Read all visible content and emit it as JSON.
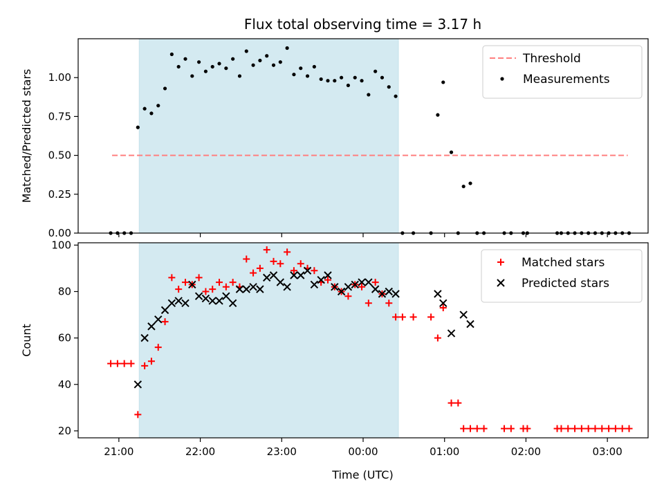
{
  "chart_data": {
    "title": "Flux total observing time = 3.17 h",
    "xlabel": "Time (UTC)",
    "xlim": [
      "2020-01-01T20:30",
      "2020-01-02T03:30"
    ],
    "x_tick_labels": [
      "21:00",
      "22:00",
      "23:00",
      "00:00",
      "01:00",
      "02:00",
      "03:00"
    ],
    "x_tick_times": [
      "2020-01-01T21:00",
      "2020-01-01T22:00",
      "2020-01-01T23:00",
      "2020-01-02T00:00",
      "2020-01-02T01:00",
      "2020-01-02T02:00",
      "2020-01-02T03:00"
    ],
    "highlight_span": {
      "start": "2020-01-01T21:15",
      "end": "2020-01-02T00:26",
      "color": "#d4eaf1"
    },
    "panels": [
      {
        "type": "scatter",
        "ylabel": "Matched/Predicted stars",
        "ylim": [
          0,
          1.25
        ],
        "yticks": [
          0.0,
          0.25,
          0.5,
          0.75,
          1.0
        ],
        "y_tick_labels": [
          "0.00",
          "0.25",
          "0.50",
          "0.75",
          "1.00"
        ],
        "legend": "top-right",
        "threshold": {
          "name": "Threshold",
          "value": 0.5,
          "x_start": "2020-01-01T20:55",
          "x_end": "2020-01-02T03:15",
          "color": "#ff7f7f"
        },
        "series": [
          {
            "name": "Measurements",
            "marker": "dot",
            "color": "#000000",
            "points": [
              [
                "2020-01-01T20:54",
                0.0
              ],
              [
                "2020-01-01T20:59",
                0.0
              ],
              [
                "2020-01-01T21:04",
                0.0
              ],
              [
                "2020-01-01T21:09",
                0.0
              ],
              [
                "2020-01-01T21:14",
                0.68
              ],
              [
                "2020-01-01T21:19",
                0.8
              ],
              [
                "2020-01-01T21:24",
                0.77
              ],
              [
                "2020-01-01T21:29",
                0.82
              ],
              [
                "2020-01-01T21:34",
                0.93
              ],
              [
                "2020-01-01T21:39",
                1.15
              ],
              [
                "2020-01-01T21:44",
                1.07
              ],
              [
                "2020-01-01T21:49",
                1.12
              ],
              [
                "2020-01-01T21:54",
                1.01
              ],
              [
                "2020-01-01T21:59",
                1.1
              ],
              [
                "2020-01-01T22:04",
                1.04
              ],
              [
                "2020-01-01T22:09",
                1.07
              ],
              [
                "2020-01-01T22:14",
                1.09
              ],
              [
                "2020-01-01T22:19",
                1.06
              ],
              [
                "2020-01-01T22:24",
                1.12
              ],
              [
                "2020-01-01T22:29",
                1.01
              ],
              [
                "2020-01-01T22:34",
                1.17
              ],
              [
                "2020-01-01T22:39",
                1.08
              ],
              [
                "2020-01-01T22:44",
                1.11
              ],
              [
                "2020-01-01T22:49",
                1.14
              ],
              [
                "2020-01-01T22:54",
                1.08
              ],
              [
                "2020-01-01T22:59",
                1.1
              ],
              [
                "2020-01-01T23:04",
                1.19
              ],
              [
                "2020-01-01T23:09",
                1.02
              ],
              [
                "2020-01-01T23:14",
                1.06
              ],
              [
                "2020-01-01T23:19",
                1.01
              ],
              [
                "2020-01-01T23:24",
                1.07
              ],
              [
                "2020-01-01T23:29",
                0.99
              ],
              [
                "2020-01-01T23:34",
                0.98
              ],
              [
                "2020-01-01T23:39",
                0.98
              ],
              [
                "2020-01-01T23:44",
                1.0
              ],
              [
                "2020-01-01T23:49",
                0.95
              ],
              [
                "2020-01-01T23:54",
                1.0
              ],
              [
                "2020-01-01T23:59",
                0.98
              ],
              [
                "2020-01-02T00:04",
                0.89
              ],
              [
                "2020-01-02T00:09",
                1.04
              ],
              [
                "2020-01-02T00:14",
                1.0
              ],
              [
                "2020-01-02T00:19",
                0.94
              ],
              [
                "2020-01-02T00:24",
                0.88
              ],
              [
                "2020-01-02T00:29",
                0.0
              ],
              [
                "2020-01-02T00:37",
                0.0
              ],
              [
                "2020-01-02T00:50",
                0.0
              ],
              [
                "2020-01-02T00:55",
                0.76
              ],
              [
                "2020-01-02T00:59",
                0.97
              ],
              [
                "2020-01-02T01:05",
                0.52
              ],
              [
                "2020-01-02T01:10",
                0.0
              ],
              [
                "2020-01-02T01:14",
                0.3
              ],
              [
                "2020-01-02T01:19",
                0.32
              ],
              [
                "2020-01-02T01:24",
                0.0
              ],
              [
                "2020-01-02T01:29",
                0.0
              ],
              [
                "2020-01-02T01:44",
                0.0
              ],
              [
                "2020-01-02T01:49",
                0.0
              ],
              [
                "2020-01-02T01:58",
                0.0
              ],
              [
                "2020-01-02T02:01",
                0.0
              ],
              [
                "2020-01-02T02:23",
                0.0
              ],
              [
                "2020-01-02T02:26",
                0.0
              ],
              [
                "2020-01-02T02:31",
                0.0
              ],
              [
                "2020-01-02T02:36",
                0.0
              ],
              [
                "2020-01-02T02:41",
                0.0
              ],
              [
                "2020-01-02T02:46",
                0.0
              ],
              [
                "2020-01-02T02:51",
                0.0
              ],
              [
                "2020-01-02T02:56",
                0.0
              ],
              [
                "2020-01-02T03:01",
                0.0
              ],
              [
                "2020-01-02T03:06",
                0.0
              ],
              [
                "2020-01-02T03:11",
                0.0
              ],
              [
                "2020-01-02T03:16",
                0.0
              ]
            ]
          }
        ]
      },
      {
        "type": "scatter",
        "ylabel": "Count",
        "ylim": [
          17,
          101
        ],
        "yticks": [
          20,
          40,
          60,
          80,
          100
        ],
        "y_tick_labels": [
          "20",
          "40",
          "60",
          "80",
          "100"
        ],
        "legend": "top-right",
        "series": [
          {
            "name": "Matched stars",
            "marker": "plus",
            "color": "#ff0000",
            "points": [
              [
                "2020-01-01T20:54",
                49
              ],
              [
                "2020-01-01T20:59",
                49
              ],
              [
                "2020-01-01T21:04",
                49
              ],
              [
                "2020-01-01T21:09",
                49
              ],
              [
                "2020-01-01T21:14",
                27
              ],
              [
                "2020-01-01T21:19",
                48
              ],
              [
                "2020-01-01T21:24",
                50
              ],
              [
                "2020-01-01T21:29",
                56
              ],
              [
                "2020-01-01T21:34",
                67
              ],
              [
                "2020-01-01T21:39",
                86
              ],
              [
                "2020-01-01T21:44",
                81
              ],
              [
                "2020-01-01T21:49",
                84
              ],
              [
                "2020-01-01T21:54",
                83
              ],
              [
                "2020-01-01T21:59",
                86
              ],
              [
                "2020-01-01T22:04",
                80
              ],
              [
                "2020-01-01T22:09",
                81
              ],
              [
                "2020-01-01T22:14",
                84
              ],
              [
                "2020-01-01T22:19",
                82
              ],
              [
                "2020-01-01T22:24",
                84
              ],
              [
                "2020-01-01T22:29",
                82
              ],
              [
                "2020-01-01T22:34",
                94
              ],
              [
                "2020-01-01T22:39",
                88
              ],
              [
                "2020-01-01T22:44",
                90
              ],
              [
                "2020-01-01T22:49",
                98
              ],
              [
                "2020-01-01T22:54",
                93
              ],
              [
                "2020-01-01T22:59",
                92
              ],
              [
                "2020-01-01T23:04",
                97
              ],
              [
                "2020-01-01T23:09",
                89
              ],
              [
                "2020-01-01T23:14",
                92
              ],
              [
                "2020-01-01T23:19",
                90
              ],
              [
                "2020-01-01T23:24",
                89
              ],
              [
                "2020-01-01T23:29",
                84
              ],
              [
                "2020-01-01T23:34",
                85
              ],
              [
                "2020-01-01T23:39",
                82
              ],
              [
                "2020-01-01T23:44",
                80
              ],
              [
                "2020-01-01T23:49",
                78
              ],
              [
                "2020-01-01T23:54",
                83
              ],
              [
                "2020-01-01T23:59",
                82
              ],
              [
                "2020-01-02T00:04",
                75
              ],
              [
                "2020-01-02T00:09",
                84
              ],
              [
                "2020-01-02T00:14",
                79
              ],
              [
                "2020-01-02T00:19",
                75
              ],
              [
                "2020-01-02T00:24",
                69
              ],
              [
                "2020-01-02T00:29",
                69
              ],
              [
                "2020-01-02T00:37",
                69
              ],
              [
                "2020-01-02T00:50",
                69
              ],
              [
                "2020-01-02T00:55",
                60
              ],
              [
                "2020-01-02T00:59",
                73
              ],
              [
                "2020-01-02T01:05",
                32
              ],
              [
                "2020-01-02T01:10",
                32
              ],
              [
                "2020-01-02T01:14",
                21
              ],
              [
                "2020-01-02T01:19",
                21
              ],
              [
                "2020-01-02T01:24",
                21
              ],
              [
                "2020-01-02T01:29",
                21
              ],
              [
                "2020-01-02T01:44",
                21
              ],
              [
                "2020-01-02T01:49",
                21
              ],
              [
                "2020-01-02T01:58",
                21
              ],
              [
                "2020-01-02T02:01",
                21
              ],
              [
                "2020-01-02T02:23",
                21
              ],
              [
                "2020-01-02T02:26",
                21
              ],
              [
                "2020-01-02T02:31",
                21
              ],
              [
                "2020-01-02T02:36",
                21
              ],
              [
                "2020-01-02T02:41",
                21
              ],
              [
                "2020-01-02T02:46",
                21
              ],
              [
                "2020-01-02T02:51",
                21
              ],
              [
                "2020-01-02T02:56",
                21
              ],
              [
                "2020-01-02T03:01",
                21
              ],
              [
                "2020-01-02T03:06",
                21
              ],
              [
                "2020-01-02T03:11",
                21
              ],
              [
                "2020-01-02T03:16",
                21
              ]
            ]
          },
          {
            "name": "Predicted stars",
            "marker": "x",
            "color": "#000000",
            "points": [
              [
                "2020-01-01T21:14",
                40
              ],
              [
                "2020-01-01T21:19",
                60
              ],
              [
                "2020-01-01T21:24",
                65
              ],
              [
                "2020-01-01T21:29",
                68
              ],
              [
                "2020-01-01T21:34",
                72
              ],
              [
                "2020-01-01T21:39",
                75
              ],
              [
                "2020-01-01T21:44",
                76
              ],
              [
                "2020-01-01T21:49",
                75
              ],
              [
                "2020-01-01T21:54",
                83
              ],
              [
                "2020-01-01T21:59",
                78
              ],
              [
                "2020-01-01T22:04",
                77
              ],
              [
                "2020-01-01T22:09",
                76
              ],
              [
                "2020-01-01T22:14",
                76
              ],
              [
                "2020-01-01T22:19",
                78
              ],
              [
                "2020-01-01T22:24",
                75
              ],
              [
                "2020-01-01T22:29",
                81
              ],
              [
                "2020-01-01T22:34",
                81
              ],
              [
                "2020-01-01T22:39",
                82
              ],
              [
                "2020-01-01T22:44",
                81
              ],
              [
                "2020-01-01T22:49",
                86
              ],
              [
                "2020-01-01T22:54",
                87
              ],
              [
                "2020-01-01T22:59",
                84
              ],
              [
                "2020-01-01T23:04",
                82
              ],
              [
                "2020-01-01T23:09",
                87
              ],
              [
                "2020-01-01T23:14",
                87
              ],
              [
                "2020-01-01T23:19",
                89
              ],
              [
                "2020-01-01T23:24",
                83
              ],
              [
                "2020-01-01T23:29",
                85
              ],
              [
                "2020-01-01T23:34",
                87
              ],
              [
                "2020-01-01T23:39",
                82
              ],
              [
                "2020-01-01T23:44",
                80
              ],
              [
                "2020-01-01T23:49",
                82
              ],
              [
                "2020-01-01T23:54",
                83
              ],
              [
                "2020-01-01T23:59",
                84
              ],
              [
                "2020-01-02T00:04",
                84
              ],
              [
                "2020-01-02T00:09",
                81
              ],
              [
                "2020-01-02T00:14",
                79
              ],
              [
                "2020-01-02T00:19",
                80
              ],
              [
                "2020-01-02T00:24",
                79
              ],
              [
                "2020-01-02T00:55",
                79
              ],
              [
                "2020-01-02T00:59",
                75
              ],
              [
                "2020-01-02T01:05",
                62
              ],
              [
                "2020-01-02T01:14",
                70
              ],
              [
                "2020-01-02T01:19",
                66
              ]
            ]
          }
        ]
      }
    ]
  }
}
